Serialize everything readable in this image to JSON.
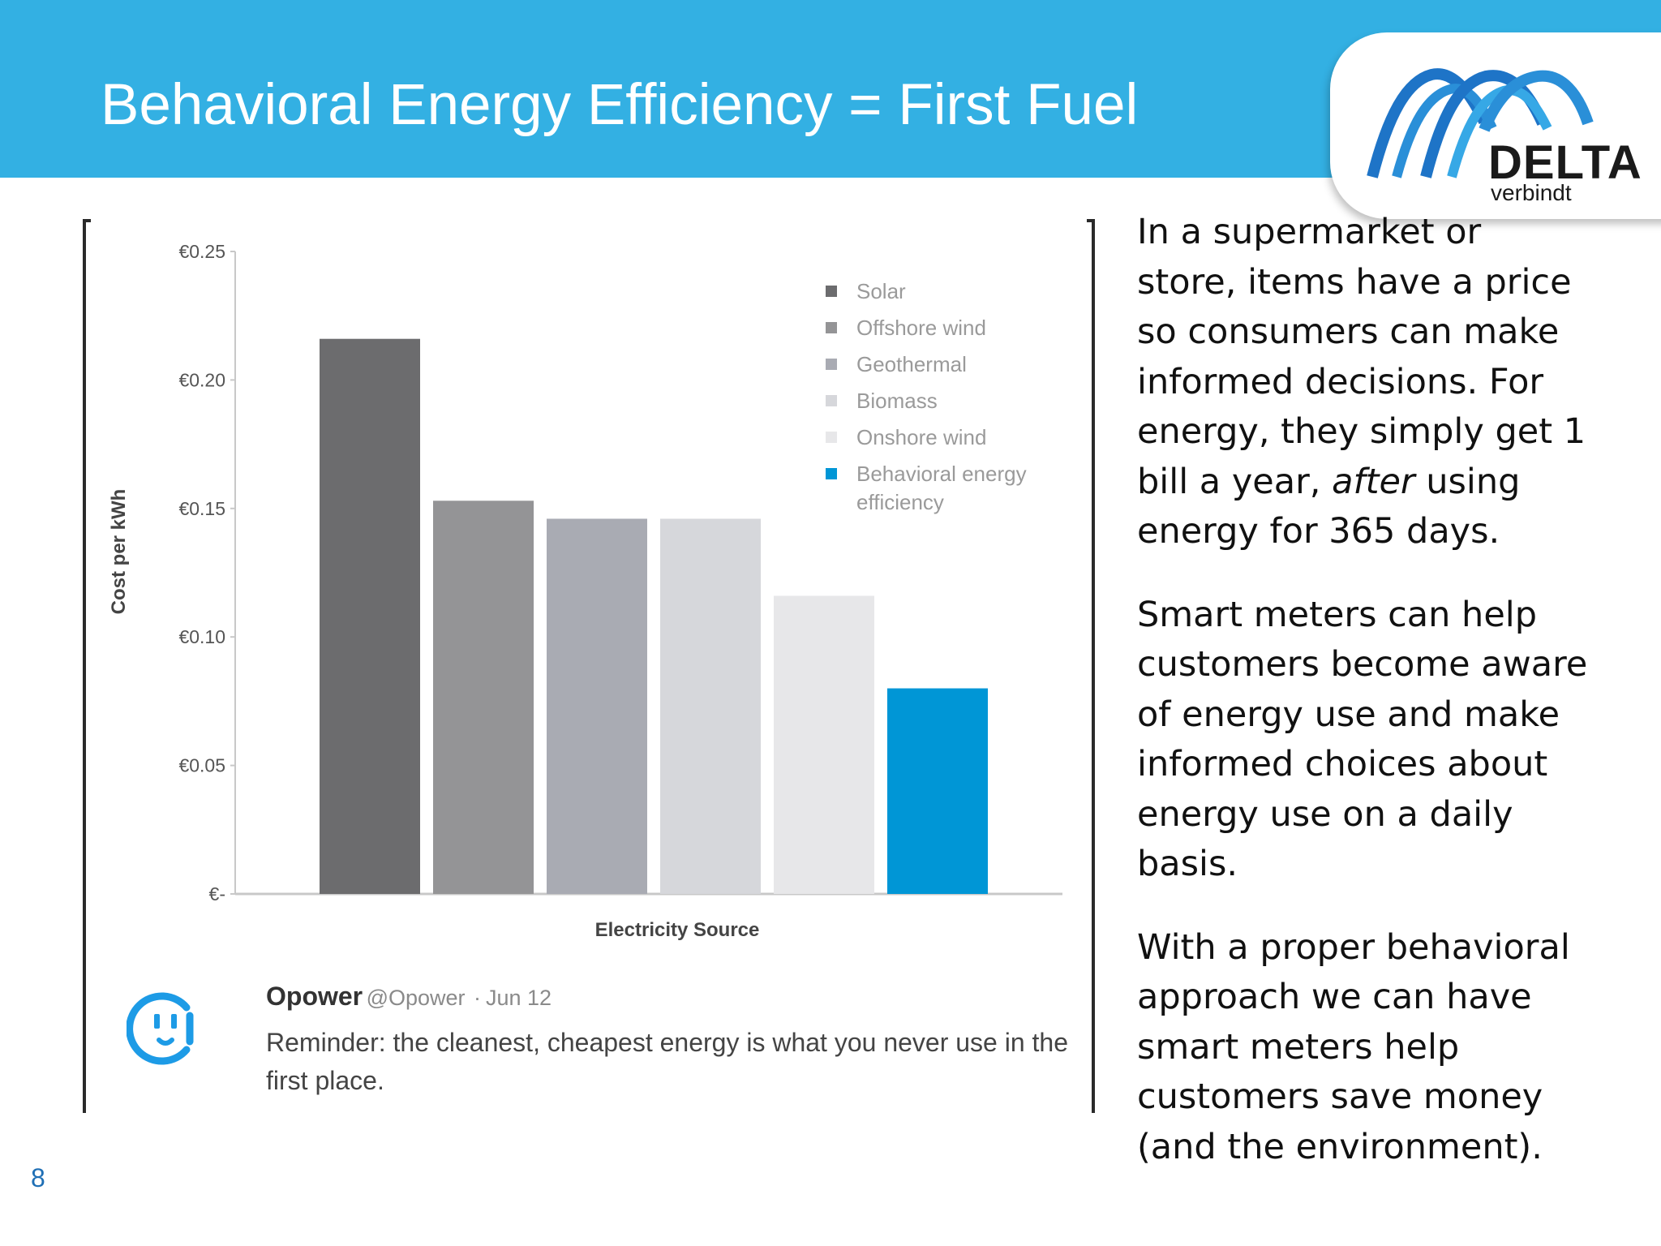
{
  "slide": {
    "title": "Behavioral Energy Efficiency = First Fuel",
    "page_number": "8",
    "colors": {
      "header": "#33b0e3",
      "accent": "#0096d6"
    }
  },
  "logo": {
    "name": "DELTA",
    "tagline": "verbindt",
    "icon": "delta-arches-logo"
  },
  "chart_data": {
    "type": "bar",
    "categories": [
      "Solar",
      "Offshore wind",
      "Geothermal",
      "Biomass",
      "Onshore wind",
      "Behavioral energy efficiency"
    ],
    "values": [
      0.216,
      0.153,
      0.146,
      0.146,
      0.116,
      0.08
    ],
    "colors": [
      "#6c6c6e",
      "#949496",
      "#a9abb3",
      "#d6d7db",
      "#e7e7e9",
      "#0096d6"
    ],
    "xlabel": "Electricity Source",
    "ylabel": "Cost per kWh",
    "ylim": [
      0,
      0.25
    ],
    "yticks": [
      0,
      0.05,
      0.1,
      0.15,
      0.2,
      0.25
    ],
    "ytick_labels": [
      "€-",
      "€0.05",
      "€0.10",
      "€0.15",
      "€0.20",
      "€0.25"
    ],
    "legend": {
      "placement": "top-right",
      "entries": [
        "Solar",
        "Offshore wind",
        "Geothermal",
        "Biomass",
        "Onshore wind",
        "Behavioral energy\nefficiency"
      ]
    },
    "grid": false
  },
  "tweet": {
    "name": "Opower",
    "handle": "@Opower",
    "separator": "·",
    "date": "Jun 12",
    "text": "Reminder: the cleanest, cheapest energy is what you never use in the first place.",
    "avatar_icon": "opower-outlet-face-icon"
  },
  "body": {
    "para1_before": "In a supermarket or store, items have a price so consumers can make informed decisions. For energy, they simply get 1 bill a year, ",
    "para1_emphasis": "after",
    "para1_after": " using energy for 365 days.",
    "para2": "Smart meters can help customers become aware of energy use and make informed choices about energy use on a daily basis.",
    "para3": "With a proper behavioral approach we can have smart meters help customers save money (and the environment)."
  }
}
